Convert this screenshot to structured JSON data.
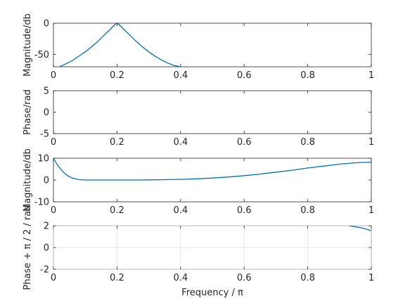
{
  "chart_data": [
    {
      "type": "line",
      "ylabel": "Magnitude/db",
      "xlim": [
        0,
        1
      ],
      "ylim": [
        -70,
        0
      ],
      "xticks": [
        "0",
        "0.2",
        "0.4",
        "0.6",
        "0.8",
        "1"
      ],
      "yticks": [
        {
          "v": 0,
          "t": "0"
        },
        {
          "v": -50,
          "t": "-50"
        }
      ],
      "grid": false,
      "series": [
        {
          "color": "#0072bd",
          "x": [
            0.02,
            0.04,
            0.06,
            0.08,
            0.1,
            0.12,
            0.14,
            0.16,
            0.18,
            0.19,
            0.195,
            0.2,
            0.205,
            0.21,
            0.22,
            0.24,
            0.26,
            0.28,
            0.3,
            0.32,
            0.34,
            0.36,
            0.38,
            0.4
          ],
          "y": [
            -70,
            -65,
            -60,
            -53,
            -46,
            -38,
            -29,
            -19,
            -9,
            -4,
            -1.5,
            0,
            -1.5,
            -4,
            -9,
            -19,
            -29,
            -38,
            -46,
            -53,
            -59,
            -64,
            -68,
            -70
          ]
        }
      ]
    },
    {
      "type": "line",
      "ylabel": "Phase/rad",
      "xlim": [
        0,
        1
      ],
      "ylim": [
        -5,
        5
      ],
      "xticks": [
        "0",
        "0.2",
        "0.4",
        "0.6",
        "0.8",
        "1"
      ],
      "yticks": [
        {
          "v": 5,
          "t": "5"
        },
        {
          "v": 0,
          "t": "0"
        },
        {
          "v": -5,
          "t": "-5"
        }
      ],
      "grid": false,
      "series": []
    },
    {
      "type": "line",
      "ylabel": "Magnitude/db",
      "xlim": [
        0,
        1
      ],
      "ylim": [
        -10,
        10
      ],
      "xticks": [
        "0",
        "0.2",
        "0.4",
        "0.6",
        "0.8",
        "1"
      ],
      "yticks": [
        {
          "v": 10,
          "t": "10"
        },
        {
          "v": 0,
          "t": "0"
        },
        {
          "v": -10,
          "t": "-10"
        }
      ],
      "grid": false,
      "series": [
        {
          "color": "#0072bd",
          "x": [
            0.0,
            0.01,
            0.02,
            0.03,
            0.04,
            0.05,
            0.06,
            0.07,
            0.08,
            0.1,
            0.12,
            0.15,
            0.2,
            0.25,
            0.3,
            0.35,
            0.4,
            0.45,
            0.5,
            0.55,
            0.6,
            0.65,
            0.7,
            0.75,
            0.8,
            0.85,
            0.9,
            0.95,
            1.0
          ],
          "y": [
            10,
            7.5,
            5.5,
            3.8,
            2.5,
            1.5,
            0.9,
            0.5,
            0.2,
            0.0,
            0.0,
            0.0,
            0.0,
            0.0,
            0.05,
            0.15,
            0.3,
            0.55,
            0.9,
            1.4,
            2.0,
            2.7,
            3.6,
            4.5,
            5.5,
            6.4,
            7.3,
            7.9,
            8.2
          ]
        }
      ]
    },
    {
      "type": "line",
      "ylabel": "Phase + π / 2 / rad",
      "xlabel": "Frequency / π",
      "xlim": [
        0,
        1
      ],
      "ylim": [
        -2,
        2
      ],
      "xticks": [
        "0",
        "0.2",
        "0.4",
        "0.6",
        "0.8",
        "1"
      ],
      "yticks": [
        {
          "v": 2,
          "t": "2"
        },
        {
          "v": 0,
          "t": "0"
        },
        {
          "v": -2,
          "t": "-2"
        }
      ],
      "grid": true,
      "series": [
        {
          "color": "#0072bd",
          "x": [
            0.93,
            0.96,
            0.98,
            1.0
          ],
          "y": [
            2.0,
            1.85,
            1.72,
            1.55
          ]
        }
      ]
    }
  ]
}
